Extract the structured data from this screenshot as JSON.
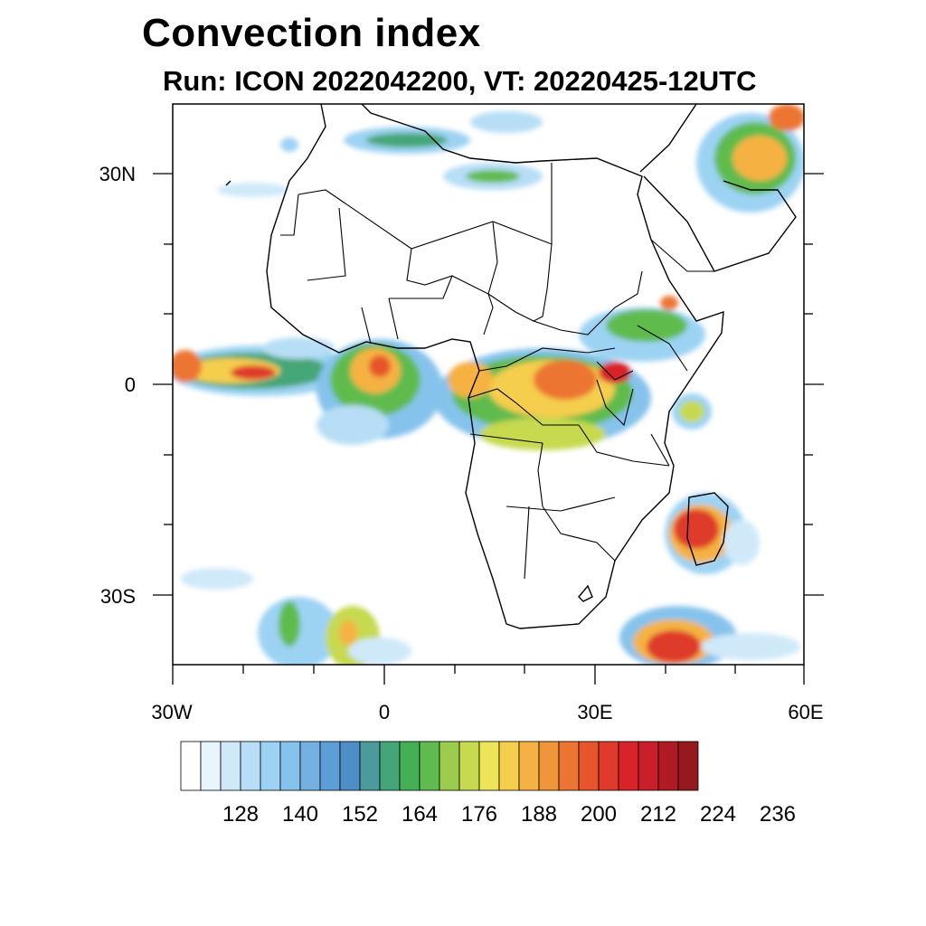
{
  "title": "Convection index",
  "subtitle": "Run: ICON 2022042200,  VT: 20220425-12UTC",
  "axes": {
    "lat_labels": [
      "30N",
      "0",
      "30S"
    ],
    "lon_labels": [
      "30W",
      "0",
      "30E",
      "60E"
    ]
  },
  "colorbar": {
    "labels": [
      "128",
      "140",
      "152",
      "164",
      "176",
      "188",
      "200",
      "212",
      "224",
      "236"
    ],
    "colors": [
      "#ffffff",
      "#e8f5fd",
      "#cfe9f9",
      "#b7def6",
      "#9cd3f3",
      "#86c3ec",
      "#74b1e2",
      "#5d9ed6",
      "#4e8ec7",
      "#4b9a9c",
      "#44a678",
      "#43b055",
      "#60bb4e",
      "#9ccc4e",
      "#c7d94f",
      "#ece559",
      "#f5ce4e",
      "#f5b242",
      "#f1953b",
      "#ec7532",
      "#e6552c",
      "#df3a2b",
      "#d72329",
      "#c81f2a",
      "#b01a25",
      "#961920"
    ]
  }
}
